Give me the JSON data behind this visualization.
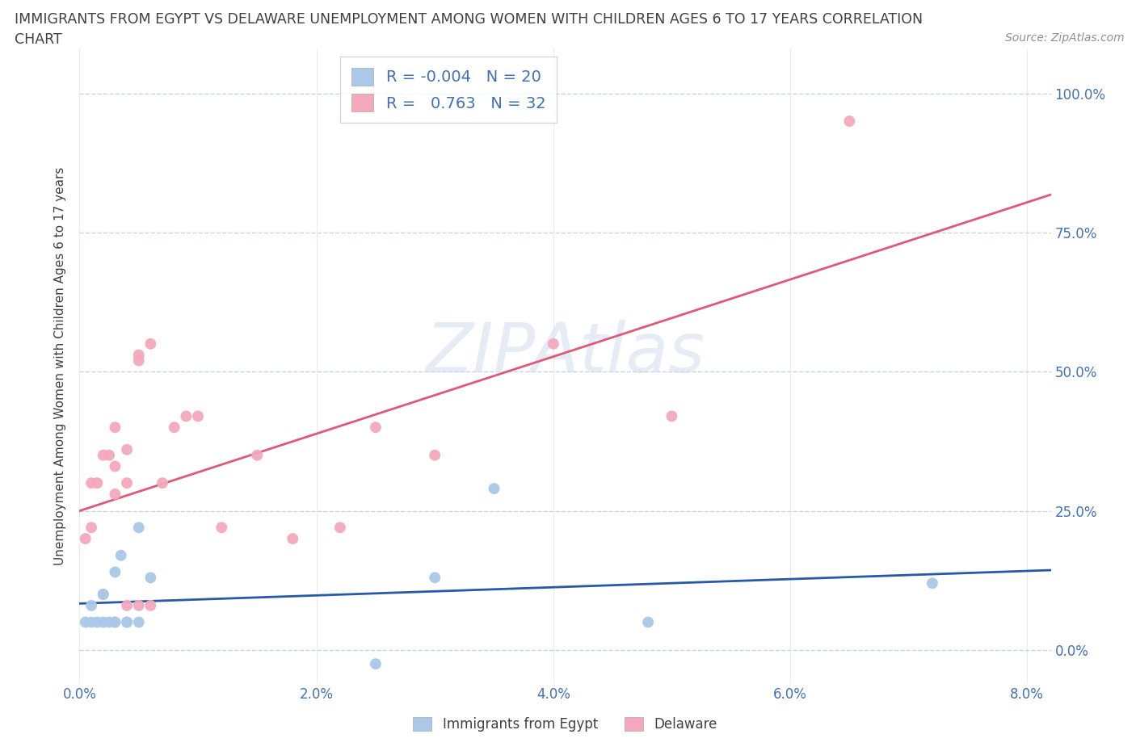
{
  "title_line1": "IMMIGRANTS FROM EGYPT VS DELAWARE UNEMPLOYMENT AMONG WOMEN WITH CHILDREN AGES 6 TO 17 YEARS CORRELATION",
  "title_line2": "CHART",
  "source": "Source: ZipAtlas.com",
  "ylabel": "Unemployment Among Women with Children Ages 6 to 17 years",
  "xlim": [
    0.0,
    0.082
  ],
  "ylim": [
    -0.06,
    1.08
  ],
  "yticks": [
    0.0,
    0.25,
    0.5,
    0.75,
    1.0
  ],
  "ytick_labels": [
    "0.0%",
    "25.0%",
    "50.0%",
    "75.0%",
    "100.0%"
  ],
  "xticks": [
    0.0,
    0.02,
    0.04,
    0.06,
    0.08
  ],
  "xtick_labels": [
    "0.0%",
    "2.0%",
    "4.0%",
    "6.0%",
    "8.0%"
  ],
  "watermark": "ZIPAtlas",
  "blue_R": -0.004,
  "blue_N": 20,
  "pink_R": 0.763,
  "pink_N": 32,
  "blue_scatter_color": "#aac8e8",
  "pink_scatter_color": "#f4a8bc",
  "blue_line_color": "#2858a8",
  "pink_line_color": "#e05878",
  "grid_color": "#c8d4e4",
  "blue_scatter_x": [
    0.0005,
    0.001,
    0.001,
    0.0015,
    0.002,
    0.002,
    0.0025,
    0.003,
    0.003,
    0.0035,
    0.004,
    0.004,
    0.005,
    0.005,
    0.006,
    0.025,
    0.03,
    0.035,
    0.048,
    0.072
  ],
  "blue_scatter_y": [
    0.05,
    0.08,
    0.05,
    0.05,
    0.1,
    0.05,
    0.05,
    0.14,
    0.05,
    0.17,
    0.05,
    0.05,
    0.22,
    0.05,
    0.13,
    -0.025,
    0.13,
    0.29,
    0.05,
    0.12
  ],
  "pink_scatter_x": [
    0.0005,
    0.001,
    0.001,
    0.0015,
    0.002,
    0.002,
    0.0025,
    0.003,
    0.003,
    0.003,
    0.003,
    0.004,
    0.004,
    0.004,
    0.005,
    0.005,
    0.005,
    0.006,
    0.006,
    0.007,
    0.008,
    0.009,
    0.01,
    0.012,
    0.015,
    0.018,
    0.022,
    0.025,
    0.03,
    0.04,
    0.05,
    0.065
  ],
  "pink_scatter_y": [
    0.2,
    0.3,
    0.22,
    0.3,
    0.35,
    0.1,
    0.35,
    0.4,
    0.33,
    0.28,
    0.05,
    0.36,
    0.3,
    0.08,
    0.53,
    0.52,
    0.08,
    0.55,
    0.08,
    0.3,
    0.4,
    0.42,
    0.42,
    0.22,
    0.35,
    0.2,
    0.22,
    0.4,
    0.35,
    0.55,
    0.42,
    0.95
  ],
  "legend_label_blue": "Immigrants from Egypt",
  "legend_label_pink": "Delaware",
  "title_color": "#404040",
  "axis_tick_color": "#4070b8",
  "background_color": "#ffffff"
}
